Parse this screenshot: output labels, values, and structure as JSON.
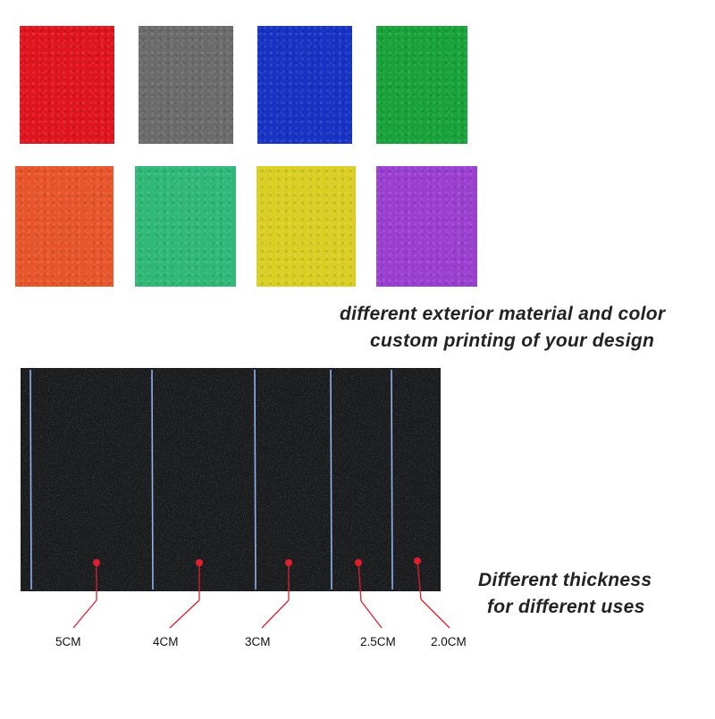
{
  "swatches": [
    {
      "name": "red",
      "color": "#e0141c"
    },
    {
      "name": "gray",
      "color": "#6b6b6b"
    },
    {
      "name": "blue",
      "color": "#1633c4"
    },
    {
      "name": "green",
      "color": "#18a23a"
    },
    {
      "name": "orange",
      "color": "#e8552a"
    },
    {
      "name": "teal-green",
      "color": "#2fb877"
    },
    {
      "name": "yellow",
      "color": "#d9cf23"
    },
    {
      "name": "purple",
      "color": "#9a3fd0"
    }
  ],
  "captions": {
    "material_line1": "different exterior material and color",
    "material_line2": "custom printing of your design",
    "thickness_line1": "Different thickness",
    "thickness_line2": "for different uses"
  },
  "thickness_labels": [
    "5CM",
    "4CM",
    "3CM",
    "2.5CM",
    "2.0CM"
  ],
  "colors": {
    "foam": "#1a1b1d",
    "seam": "#8fb3f0",
    "marker": "#e01e2e"
  }
}
